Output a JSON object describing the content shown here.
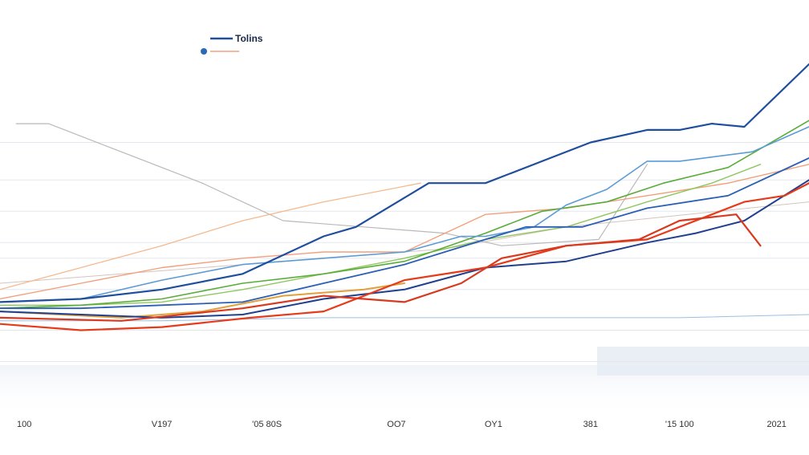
{
  "chart_data": {
    "type": "line",
    "title": "",
    "xlabel": "",
    "ylabel": "",
    "xlim": [
      0,
      100
    ],
    "ylim": [
      0,
      100
    ],
    "grid": true,
    "legend_position": "top-left",
    "legend": [
      {
        "label": "Tolins",
        "color": "#1f4e9c"
      },
      {
        "label": "",
        "color": "#f2a07b"
      }
    ],
    "x_tick_labels": [
      "100",
      "V197",
      "'05 80S",
      "OO7",
      "OY1",
      "381",
      "'15 100",
      "2021"
    ],
    "x_tick_positions": [
      3,
      20,
      33,
      49,
      61,
      73,
      84,
      96
    ],
    "y_gridlines": [
      5,
      15,
      28,
      38,
      43,
      53,
      63,
      75
    ],
    "series": [
      {
        "name": "Tolins",
        "color": "#1f4e9c",
        "width": 2.2,
        "x": [
          0,
          10,
          20,
          30,
          40,
          44,
          53,
          60,
          68,
          73,
          80,
          84,
          88,
          92,
          100
        ],
        "y": [
          24,
          25,
          28,
          33,
          45,
          48,
          62,
          62,
          70,
          75,
          79,
          79,
          81,
          80,
          100
        ]
      },
      {
        "name": "",
        "color": "#d73a1f",
        "width": 2.2,
        "x": [
          0,
          15,
          30,
          40,
          50,
          57,
          62,
          70,
          79,
          84,
          91,
          94
        ],
        "y": [
          19,
          18,
          22,
          26,
          24,
          30,
          38,
          42,
          44,
          50,
          52,
          42
        ]
      },
      {
        "name": "",
        "color": "#e63a1a",
        "width": 2.2,
        "x": [
          0,
          10,
          20,
          31,
          40,
          50,
          60,
          70,
          80,
          88,
          92,
          97,
          100
        ],
        "y": [
          17,
          15,
          16,
          19,
          21,
          31,
          35,
          42,
          44,
          52,
          56,
          58,
          62
        ]
      },
      {
        "name": "",
        "color": "#213f8f",
        "width": 2.0,
        "x": [
          0,
          10,
          20,
          30,
          40,
          50,
          60,
          70,
          80,
          86,
          92,
          100
        ],
        "y": [
          21,
          20,
          19,
          20,
          25,
          28,
          35,
          37,
          43,
          46,
          50,
          63
        ]
      },
      {
        "name": "",
        "color": "#2a5fb5",
        "width": 1.8,
        "x": [
          0,
          10,
          20,
          30,
          40,
          50,
          60,
          65,
          72,
          80,
          90,
          100
        ],
        "y": [
          22,
          22,
          23,
          24,
          30,
          36,
          44,
          48,
          48,
          54,
          58,
          70
        ]
      },
      {
        "name": "",
        "color": "#5b9bd5",
        "width": 1.6,
        "x": [
          0,
          10,
          20,
          30,
          40,
          50,
          57,
          60,
          66,
          70,
          75,
          80,
          84,
          93,
          100
        ],
        "y": [
          24,
          25,
          31,
          36,
          38,
          40,
          45,
          45,
          48,
          55,
          60,
          69,
          69,
          72,
          80
        ]
      },
      {
        "name": "",
        "color": "#5aac3a",
        "width": 1.6,
        "x": [
          0,
          10,
          20,
          30,
          40,
          50,
          60,
          67,
          75,
          82,
          90,
          94,
          100
        ],
        "y": [
          22,
          23,
          25,
          30,
          33,
          37,
          46,
          53,
          56,
          62,
          67,
          73,
          82
        ]
      },
      {
        "name": "",
        "color": "#8fc65e",
        "width": 1.4,
        "x": [
          0,
          10,
          20,
          30,
          40,
          50,
          60,
          70,
          80,
          88,
          94
        ],
        "y": [
          23,
          23,
          24,
          28,
          33,
          38,
          44,
          48,
          56,
          62,
          68
        ]
      },
      {
        "name": "",
        "color": "#f2a07b",
        "width": 1.4,
        "x": [
          0,
          10,
          20,
          30,
          40,
          50,
          60,
          70,
          80,
          90,
          100
        ],
        "y": [
          25,
          30,
          35,
          38,
          40,
          40,
          52,
          54,
          58,
          62,
          68
        ]
      },
      {
        "name": "",
        "color": "#f5b98e",
        "width": 1.3,
        "x": [
          0,
          10,
          20,
          30,
          40,
          52
        ],
        "y": [
          28,
          35,
          42,
          50,
          56,
          62
        ]
      },
      {
        "name": "",
        "color": "#e0a03c",
        "width": 2.0,
        "x": [
          0,
          15,
          25,
          35,
          45,
          50
        ],
        "y": [
          21,
          19,
          21,
          26,
          28,
          30
        ]
      },
      {
        "name": "",
        "color": "#b9b9b9",
        "width": 1.2,
        "x": [
          2,
          6,
          15,
          25,
          35,
          45,
          55,
          62,
          74,
          80
        ],
        "y": [
          81,
          81,
          72,
          62,
          50,
          48,
          46,
          42,
          44,
          68
        ]
      },
      {
        "name": "",
        "color": "#d4c4bc",
        "width": 1.0,
        "x": [
          0,
          20,
          40,
          55,
          70,
          85,
          100
        ],
        "y": [
          30,
          34,
          38,
          41,
          48,
          52,
          56
        ]
      },
      {
        "name": "",
        "color": "#9bbfe3",
        "width": 1.0,
        "x": [
          0,
          20,
          40,
          55,
          74,
          84,
          100
        ],
        "y": [
          18,
          18,
          19,
          19,
          19,
          19,
          20
        ]
      }
    ]
  }
}
